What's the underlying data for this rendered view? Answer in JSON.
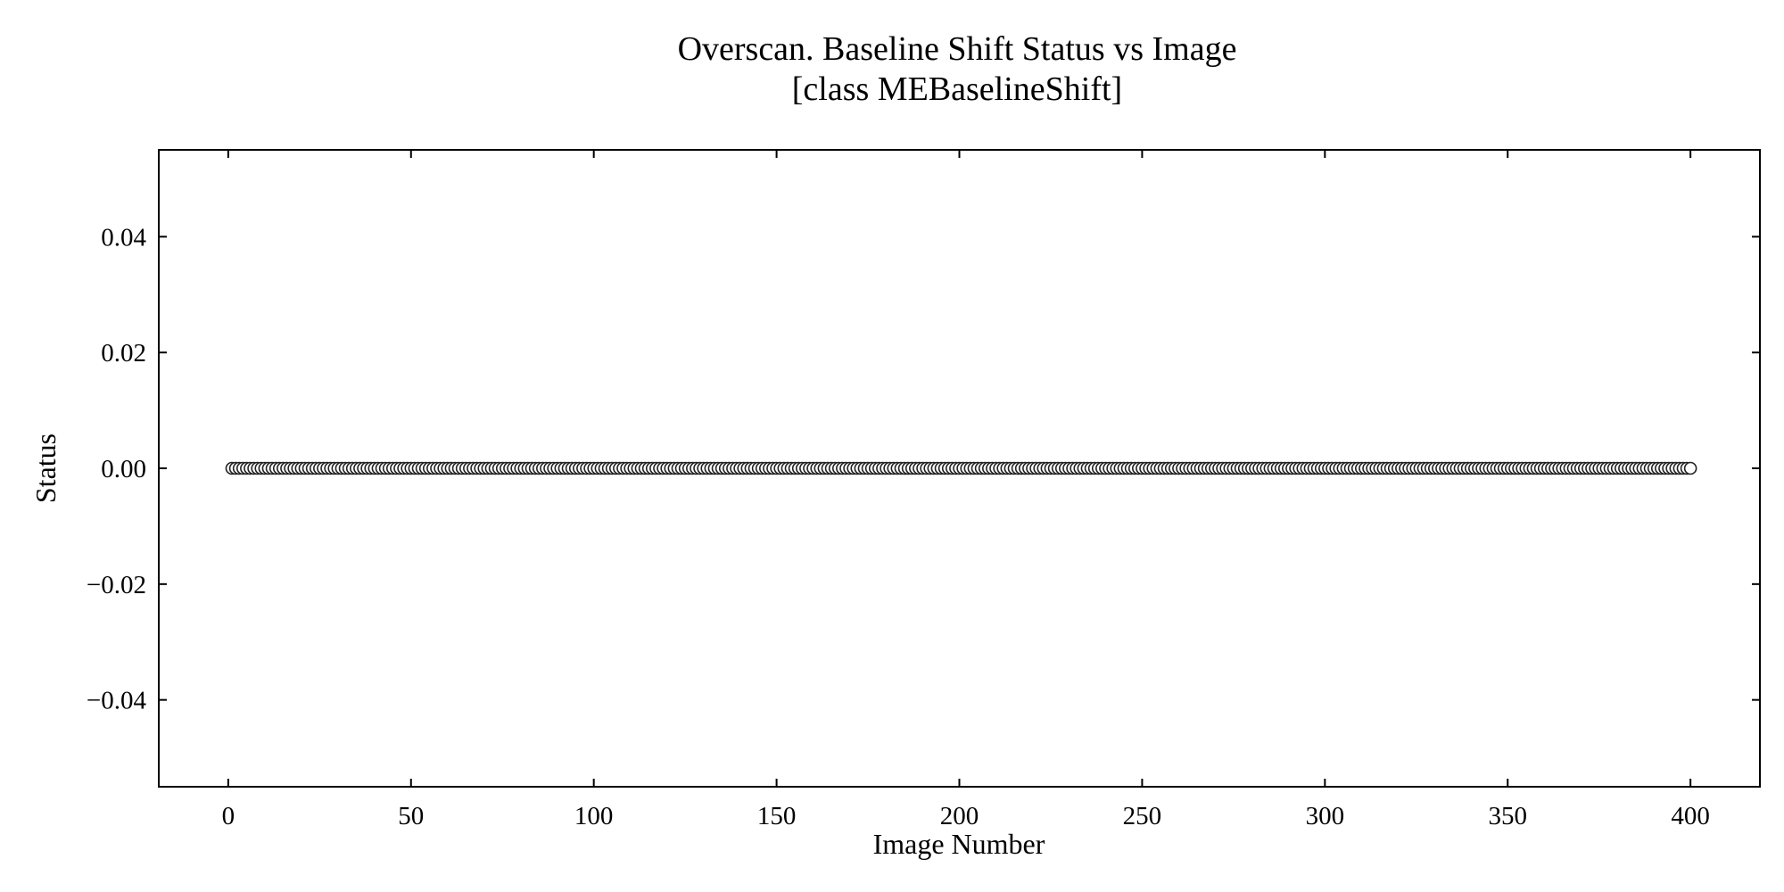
{
  "chart_data": {
    "type": "scatter",
    "title": "Overscan. Baseline Shift Status vs Image",
    "subtitle": "[class MEBaselineShift]",
    "xlabel": "Image Number",
    "ylabel": "Status",
    "xlim": [
      -19,
      419
    ],
    "ylim": [
      -0.055,
      0.055
    ],
    "x_ticks": [
      0,
      50,
      100,
      150,
      200,
      250,
      300,
      350,
      400
    ],
    "x_tick_labels": [
      "0",
      "50",
      "100",
      "150",
      "200",
      "250",
      "300",
      "350",
      "400"
    ],
    "y_ticks": [
      0.04,
      0.02,
      0.0,
      -0.02,
      -0.04
    ],
    "y_tick_labels": [
      "0.04",
      "0.02",
      "0.00",
      "−0.02",
      "−0.04"
    ],
    "grid": false,
    "series": [
      {
        "x_start": 1,
        "x_end": 400,
        "x_step": 1,
        "y": 0.0
      }
    ],
    "colors": {
      "marker_face": "#ffffff",
      "marker_edge": "#222222",
      "axes": "#000000"
    }
  }
}
